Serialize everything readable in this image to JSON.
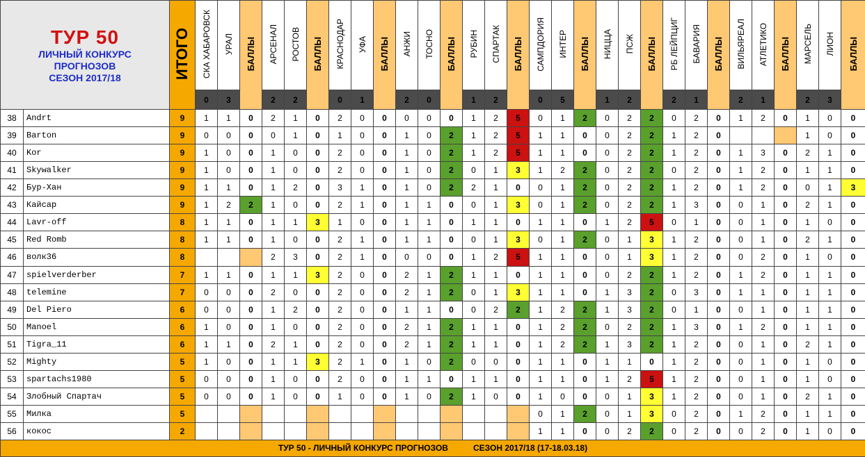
{
  "header": {
    "tour_title": "ТУР 50",
    "subtitle_1": "ЛИЧНЫЙ КОНКУРС",
    "subtitle_2": "ПРОГНОЗОВ",
    "subtitle_3": "СЕЗОН 2017/18",
    "total_label": "ИТОГО",
    "points_label": "БАЛЛЫ"
  },
  "matches": [
    {
      "home": "СКА ХАБАРОВСК",
      "away": "УРАЛ",
      "score_home": "0",
      "score_away": "3"
    },
    {
      "home": "АРСЕНАЛ",
      "away": "РОСТОВ",
      "score_home": "2",
      "score_away": "2"
    },
    {
      "home": "КРАСНОДАР",
      "away": "УФА",
      "score_home": "0",
      "score_away": "1"
    },
    {
      "home": "АНЖИ",
      "away": "ТОСНО",
      "score_home": "2",
      "score_away": "0"
    },
    {
      "home": "РУБИН",
      "away": "СПАРТАК",
      "score_home": "1",
      "score_away": "2"
    },
    {
      "home": "САМПДОРИЯ",
      "away": "ИНТЕР",
      "score_home": "0",
      "score_away": "5"
    },
    {
      "home": "НИЦЦА",
      "away": "ПСЖ",
      "score_home": "1",
      "score_away": "2"
    },
    {
      "home": "РБ ЛЕЙПЦИГ",
      "away": "БАВАРИЯ",
      "score_home": "2",
      "score_away": "1"
    },
    {
      "home": "ВИЛЬЯРЕАЛ",
      "away": "АТЛЕТИКО",
      "score_home": "2",
      "score_away": "1"
    },
    {
      "home": "МАРСЕЛЬ",
      "away": "ЛИОН",
      "score_home": "2",
      "score_away": "3"
    }
  ],
  "rows": [
    {
      "num": "38",
      "name": "Andrt",
      "total": "9",
      "p": [
        [
          "1",
          "1",
          "0"
        ],
        [
          "2",
          "1",
          "0"
        ],
        [
          "2",
          "0",
          "0"
        ],
        [
          "0",
          "0",
          "0"
        ],
        [
          "1",
          "2",
          "5"
        ],
        [
          "0",
          "1",
          "2"
        ],
        [
          "0",
          "2",
          "2"
        ],
        [
          "0",
          "2",
          "0"
        ],
        [
          "1",
          "2",
          "0"
        ],
        [
          "1",
          "0",
          "0"
        ]
      ]
    },
    {
      "num": "39",
      "name": "Barton",
      "total": "9",
      "p": [
        [
          "0",
          "0",
          "0"
        ],
        [
          "0",
          "1",
          "0"
        ],
        [
          "1",
          "0",
          "0"
        ],
        [
          "1",
          "0",
          "2"
        ],
        [
          "1",
          "2",
          "5"
        ],
        [
          "1",
          "1",
          "0"
        ],
        [
          "0",
          "2",
          "2"
        ],
        [
          "1",
          "2",
          "0"
        ],
        [
          "",
          "",
          ""
        ],
        [
          "1",
          "0",
          "0"
        ]
      ]
    },
    {
      "num": "40",
      "name": "Kor",
      "total": "9",
      "p": [
        [
          "1",
          "0",
          "0"
        ],
        [
          "1",
          "0",
          "0"
        ],
        [
          "2",
          "0",
          "0"
        ],
        [
          "1",
          "0",
          "2"
        ],
        [
          "1",
          "2",
          "5"
        ],
        [
          "1",
          "1",
          "0"
        ],
        [
          "0",
          "2",
          "2"
        ],
        [
          "1",
          "2",
          "0"
        ],
        [
          "1",
          "3",
          "0"
        ],
        [
          "2",
          "1",
          "0"
        ]
      ]
    },
    {
      "num": "41",
      "name": "Skywalker",
      "total": "9",
      "p": [
        [
          "1",
          "0",
          "0"
        ],
        [
          "1",
          "0",
          "0"
        ],
        [
          "2",
          "0",
          "0"
        ],
        [
          "1",
          "0",
          "2"
        ],
        [
          "0",
          "1",
          "3"
        ],
        [
          "1",
          "2",
          "2"
        ],
        [
          "0",
          "2",
          "2"
        ],
        [
          "0",
          "2",
          "0"
        ],
        [
          "1",
          "2",
          "0"
        ],
        [
          "1",
          "1",
          "0"
        ]
      ]
    },
    {
      "num": "42",
      "name": "Бур-Хан",
      "total": "9",
      "p": [
        [
          "1",
          "1",
          "0"
        ],
        [
          "1",
          "2",
          "0"
        ],
        [
          "3",
          "1",
          "0"
        ],
        [
          "1",
          "0",
          "2"
        ],
        [
          "2",
          "1",
          "0"
        ],
        [
          "0",
          "1",
          "2"
        ],
        [
          "0",
          "2",
          "2"
        ],
        [
          "1",
          "2",
          "0"
        ],
        [
          "1",
          "2",
          "0"
        ],
        [
          "0",
          "1",
          "3"
        ]
      ]
    },
    {
      "num": "43",
      "name": "Кайсар",
      "total": "9",
      "p": [
        [
          "1",
          "2",
          "2"
        ],
        [
          "1",
          "0",
          "0"
        ],
        [
          "2",
          "1",
          "0"
        ],
        [
          "1",
          "1",
          "0"
        ],
        [
          "0",
          "1",
          "3"
        ],
        [
          "0",
          "1",
          "2"
        ],
        [
          "0",
          "2",
          "2"
        ],
        [
          "1",
          "3",
          "0"
        ],
        [
          "0",
          "1",
          "0"
        ],
        [
          "2",
          "1",
          "0"
        ]
      ]
    },
    {
      "num": "44",
      "name": "Lavr-off",
      "total": "8",
      "p": [
        [
          "1",
          "1",
          "0"
        ],
        [
          "1",
          "1",
          "3"
        ],
        [
          "1",
          "0",
          "0"
        ],
        [
          "1",
          "1",
          "0"
        ],
        [
          "1",
          "1",
          "0"
        ],
        [
          "1",
          "1",
          "0"
        ],
        [
          "1",
          "2",
          "5"
        ],
        [
          "0",
          "1",
          "0"
        ],
        [
          "0",
          "1",
          "0"
        ],
        [
          "1",
          "0",
          "0"
        ]
      ]
    },
    {
      "num": "45",
      "name": "Red Romb",
      "total": "8",
      "p": [
        [
          "1",
          "1",
          "0"
        ],
        [
          "1",
          "0",
          "0"
        ],
        [
          "2",
          "1",
          "0"
        ],
        [
          "1",
          "1",
          "0"
        ],
        [
          "0",
          "1",
          "3"
        ],
        [
          "0",
          "1",
          "2"
        ],
        [
          "0",
          "1",
          "3"
        ],
        [
          "1",
          "2",
          "0"
        ],
        [
          "0",
          "1",
          "0"
        ],
        [
          "2",
          "1",
          "0"
        ]
      ]
    },
    {
      "num": "46",
      "name": "волк36",
      "total": "8",
      "p": [
        [
          "",
          "",
          ""
        ],
        [
          "2",
          "3",
          "0"
        ],
        [
          "2",
          "1",
          "0"
        ],
        [
          "0",
          "0",
          "0"
        ],
        [
          "1",
          "2",
          "5"
        ],
        [
          "1",
          "1",
          "0"
        ],
        [
          "0",
          "1",
          "3"
        ],
        [
          "1",
          "2",
          "0"
        ],
        [
          "0",
          "2",
          "0"
        ],
        [
          "1",
          "0",
          "0"
        ]
      ]
    },
    {
      "num": "47",
      "name": "spielverderber",
      "total": "7",
      "p": [
        [
          "1",
          "1",
          "0"
        ],
        [
          "1",
          "1",
          "3"
        ],
        [
          "2",
          "0",
          "0"
        ],
        [
          "2",
          "1",
          "2"
        ],
        [
          "1",
          "1",
          "0"
        ],
        [
          "1",
          "1",
          "0"
        ],
        [
          "0",
          "2",
          "2"
        ],
        [
          "1",
          "2",
          "0"
        ],
        [
          "1",
          "2",
          "0"
        ],
        [
          "1",
          "1",
          "0"
        ]
      ]
    },
    {
      "num": "48",
      "name": "telemine",
      "total": "7",
      "p": [
        [
          "0",
          "0",
          "0"
        ],
        [
          "2",
          "0",
          "0"
        ],
        [
          "2",
          "0",
          "0"
        ],
        [
          "2",
          "1",
          "2"
        ],
        [
          "0",
          "1",
          "3"
        ],
        [
          "1",
          "1",
          "0"
        ],
        [
          "1",
          "3",
          "2"
        ],
        [
          "0",
          "3",
          "0"
        ],
        [
          "1",
          "1",
          "0"
        ],
        [
          "1",
          "1",
          "0"
        ]
      ]
    },
    {
      "num": "49",
      "name": "Del Piero",
      "total": "6",
      "p": [
        [
          "0",
          "0",
          "0"
        ],
        [
          "1",
          "2",
          "0"
        ],
        [
          "2",
          "0",
          "0"
        ],
        [
          "1",
          "1",
          "0"
        ],
        [
          "0",
          "2",
          "2"
        ],
        [
          "1",
          "2",
          "2"
        ],
        [
          "1",
          "3",
          "2"
        ],
        [
          "0",
          "1",
          "0"
        ],
        [
          "0",
          "1",
          "0"
        ],
        [
          "1",
          "1",
          "0"
        ]
      ]
    },
    {
      "num": "50",
      "name": "Manoel",
      "total": "6",
      "p": [
        [
          "1",
          "0",
          "0"
        ],
        [
          "1",
          "0",
          "0"
        ],
        [
          "2",
          "0",
          "0"
        ],
        [
          "2",
          "1",
          "2"
        ],
        [
          "1",
          "1",
          "0"
        ],
        [
          "1",
          "2",
          "2"
        ],
        [
          "0",
          "2",
          "2"
        ],
        [
          "1",
          "3",
          "0"
        ],
        [
          "1",
          "2",
          "0"
        ],
        [
          "1",
          "1",
          "0"
        ]
      ]
    },
    {
      "num": "51",
      "name": "Tigra_11",
      "total": "6",
      "p": [
        [
          "1",
          "1",
          "0"
        ],
        [
          "2",
          "1",
          "0"
        ],
        [
          "2",
          "0",
          "0"
        ],
        [
          "2",
          "1",
          "2"
        ],
        [
          "1",
          "1",
          "0"
        ],
        [
          "1",
          "2",
          "2"
        ],
        [
          "1",
          "3",
          "2"
        ],
        [
          "1",
          "2",
          "0"
        ],
        [
          "0",
          "1",
          "0"
        ],
        [
          "2",
          "1",
          "0"
        ]
      ]
    },
    {
      "num": "52",
      "name": "Mighty",
      "total": "5",
      "p": [
        [
          "1",
          "0",
          "0"
        ],
        [
          "1",
          "1",
          "3"
        ],
        [
          "2",
          "1",
          "0"
        ],
        [
          "1",
          "0",
          "2"
        ],
        [
          "0",
          "0",
          "0"
        ],
        [
          "1",
          "1",
          "0"
        ],
        [
          "1",
          "1",
          "0"
        ],
        [
          "1",
          "2",
          "0"
        ],
        [
          "0",
          "1",
          "0"
        ],
        [
          "1",
          "0",
          "0"
        ]
      ]
    },
    {
      "num": "53",
      "name": "spartachs1980",
      "total": "5",
      "p": [
        [
          "0",
          "0",
          "0"
        ],
        [
          "1",
          "0",
          "0"
        ],
        [
          "2",
          "0",
          "0"
        ],
        [
          "1",
          "1",
          "0"
        ],
        [
          "1",
          "1",
          "0"
        ],
        [
          "1",
          "1",
          "0"
        ],
        [
          "1",
          "2",
          "5"
        ],
        [
          "1",
          "2",
          "0"
        ],
        [
          "0",
          "1",
          "0"
        ],
        [
          "1",
          "0",
          "0"
        ]
      ]
    },
    {
      "num": "54",
      "name": "Злобный Спартач",
      "total": "5",
      "p": [
        [
          "0",
          "0",
          "0"
        ],
        [
          "1",
          "0",
          "0"
        ],
        [
          "1",
          "0",
          "0"
        ],
        [
          "1",
          "0",
          "2"
        ],
        [
          "1",
          "0",
          "0"
        ],
        [
          "1",
          "0",
          "0"
        ],
        [
          "0",
          "1",
          "3"
        ],
        [
          "1",
          "2",
          "0"
        ],
        [
          "0",
          "1",
          "0"
        ],
        [
          "2",
          "1",
          "0"
        ]
      ]
    },
    {
      "num": "55",
      "name": "Милка",
      "total": "5",
      "p": [
        [
          "",
          "",
          ""
        ],
        [
          "",
          "",
          ""
        ],
        [
          "",
          "",
          ""
        ],
        [
          "",
          "",
          ""
        ],
        [
          "",
          "",
          ""
        ],
        [
          "0",
          "1",
          "2"
        ],
        [
          "0",
          "1",
          "3"
        ],
        [
          "0",
          "2",
          "0"
        ],
        [
          "1",
          "2",
          "0"
        ],
        [
          "1",
          "1",
          "0"
        ]
      ]
    },
    {
      "num": "56",
      "name": "кокос",
      "total": "2",
      "p": [
        [
          "",
          "",
          ""
        ],
        [
          "",
          "",
          ""
        ],
        [
          "",
          "",
          ""
        ],
        [
          "",
          "",
          ""
        ],
        [
          "",
          "",
          ""
        ],
        [
          "1",
          "1",
          "0"
        ],
        [
          "0",
          "2",
          "2"
        ],
        [
          "0",
          "2",
          "0"
        ],
        [
          "0",
          "2",
          "0"
        ],
        [
          "1",
          "0",
          "0"
        ]
      ]
    }
  ],
  "footer": {
    "left": "ТУР 50 - ЛИЧНЫЙ КОНКУРС ПРОГНОЗОВ",
    "right": "СЕЗОН 2017/18 (17-18.03.18)"
  }
}
